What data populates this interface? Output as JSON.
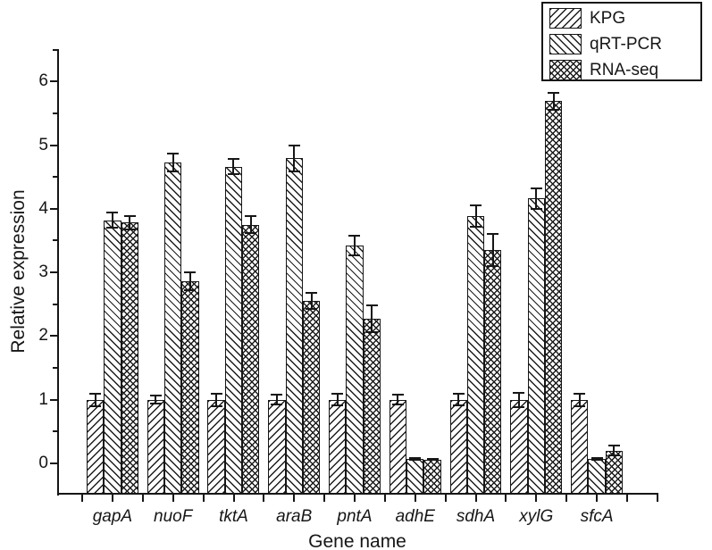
{
  "chart_data": {
    "type": "bar",
    "title": "",
    "xlabel": "Gene name",
    "ylabel": "Relative expression",
    "ylim": [
      -0.5,
      6.5
    ],
    "yticks": [
      0,
      1,
      2,
      3,
      4,
      5,
      6
    ],
    "grid": "off",
    "legend_position": "top-right",
    "bar_style": "black-and-white hatched, error bars",
    "categories": [
      "gapA",
      "nuoF",
      "tktA",
      "araB",
      "pntA",
      "adhE",
      "sdhA",
      "xylG",
      "sfcA"
    ],
    "series": [
      {
        "name": "KPG",
        "hatch": "forward-diagonal",
        "values": [
          1.0,
          1.0,
          1.0,
          1.0,
          1.0,
          1.0,
          1.0,
          1.0,
          1.0
        ],
        "errors": [
          0.1,
          0.06,
          0.1,
          0.08,
          0.09,
          0.08,
          0.09,
          0.11,
          0.1
        ]
      },
      {
        "name": "qRT-PCR",
        "hatch": "backward-diagonal",
        "values": [
          3.82,
          4.73,
          4.66,
          4.79,
          3.42,
          0.07,
          3.88,
          4.16,
          0.07
        ],
        "errors": [
          0.12,
          0.14,
          0.12,
          0.21,
          0.15,
          0.02,
          0.17,
          0.16,
          0.02
        ]
      },
      {
        "name": "RNA-seq",
        "hatch": "crosshatch",
        "values": [
          3.78,
          2.86,
          3.75,
          2.55,
          2.27,
          0.06,
          3.35,
          5.69,
          0.2
        ],
        "errors": [
          0.11,
          0.14,
          0.13,
          0.13,
          0.21,
          0.01,
          0.25,
          0.13,
          0.08
        ]
      }
    ]
  }
}
